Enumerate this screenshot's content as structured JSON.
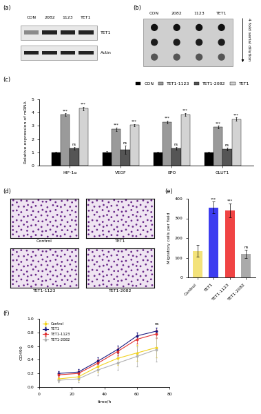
{
  "blot_a": {
    "panel": "(a)",
    "lanes": [
      "CON",
      "2082",
      "1123",
      "TET1"
    ],
    "rows": [
      "TET1",
      "Actin"
    ]
  },
  "blot_b": {
    "panel": "(b)",
    "lanes": [
      "CON",
      "2082",
      "1123",
      "TET1"
    ],
    "note": "4 fold serial dilution"
  },
  "images_d": {
    "panel": "(d)",
    "images": [
      "Control",
      "TET1",
      "TET1-1123",
      "TET1-2082"
    ]
  },
  "chart_data": [
    {
      "type": "bar",
      "panel": "(c)",
      "y_label": "Relative expression of mRNA",
      "categories": [
        "HIF-1α",
        "VEGF",
        "EPO",
        "GLUT1"
      ],
      "series": [
        {
          "name": "CON",
          "color": "#000000",
          "values": [
            1,
            1,
            1,
            1
          ],
          "errors": [
            0.05,
            0.08,
            0.05,
            0.05
          ],
          "annotations": [
            null,
            null,
            null,
            null
          ]
        },
        {
          "name": "TET1-1123",
          "color": "#9a9a9a",
          "values": [
            3.85,
            2.75,
            3.3,
            2.9
          ],
          "errors": [
            0.1,
            0.12,
            0.1,
            0.1
          ],
          "annotations": [
            "***",
            "***",
            "***",
            "***"
          ]
        },
        {
          "name": "TET1-2082",
          "color": "#555555",
          "values": [
            1.3,
            1.2,
            1.3,
            1.25
          ],
          "errors": [
            0.12,
            0.3,
            0.12,
            0.1
          ],
          "annotations": [
            "ns",
            "ns",
            "ns",
            "ns"
          ]
        },
        {
          "name": "TET1",
          "color": "#d3d3d3",
          "values": [
            4.3,
            3.05,
            3.85,
            3.5
          ],
          "errors": [
            0.15,
            0.1,
            0.12,
            0.12
          ],
          "annotations": [
            "***",
            "***",
            "***",
            "***"
          ]
        }
      ],
      "ylim": [
        0,
        5
      ],
      "yticks": [
        0,
        1,
        2,
        3,
        4,
        5
      ],
      "legend": "upper right"
    },
    {
      "type": "bar",
      "panel": "(e)",
      "y_label": "Migratory cells per field",
      "categories": [
        "Control",
        "TET1",
        "TET1-1123",
        "TET1-2082"
      ],
      "values": [
        135,
        355,
        340,
        120
      ],
      "errors": [
        30,
        30,
        35,
        20
      ],
      "annotations": [
        null,
        "***",
        "***",
        "ns"
      ],
      "colors": [
        "#f3e27a",
        "#3c3cf0",
        "#f04444",
        "#aaaaaa"
      ],
      "ylim": [
        0,
        400
      ],
      "yticks": [
        0,
        100,
        200,
        300,
        400
      ]
    },
    {
      "type": "line",
      "panel": "(f)",
      "x_label": "time/h",
      "y_label": "OD490",
      "x": [
        12,
        24,
        36,
        48,
        60,
        72
      ],
      "series": [
        {
          "name": "Control",
          "color": "#f2d21c",
          "marker": "o",
          "values": [
            0.12,
            0.15,
            0.3,
            0.42,
            0.5,
            0.58
          ],
          "errors": [
            0.03,
            0.05,
            0.08,
            0.1,
            0.12,
            0.15
          ]
        },
        {
          "name": "TET1",
          "color": "#1a1a80",
          "marker": "o",
          "values": [
            0.2,
            0.22,
            0.38,
            0.55,
            0.75,
            0.82
          ],
          "errors": [
            0.03,
            0.04,
            0.05,
            0.06,
            0.05,
            0.05
          ]
        },
        {
          "name": "TET1-1123",
          "color": "#e03030",
          "marker": "o",
          "values": [
            0.18,
            0.2,
            0.35,
            0.52,
            0.7,
            0.78
          ],
          "errors": [
            0.03,
            0.04,
            0.05,
            0.06,
            0.06,
            0.06
          ]
        },
        {
          "name": "TET1-2082",
          "color": "#b0b0b0",
          "marker": "o",
          "values": [
            0.1,
            0.12,
            0.25,
            0.35,
            0.45,
            0.55
          ],
          "errors": [
            0.03,
            0.05,
            0.08,
            0.1,
            0.15,
            0.18
          ]
        }
      ],
      "annotations": [
        {
          "text": "ns",
          "x": 72,
          "y": 0.9
        }
      ],
      "xlim": [
        0,
        80
      ],
      "xticks": [
        0,
        20,
        40,
        60,
        80
      ],
      "ylim": [
        0,
        1.0
      ],
      "yticks": [
        {
          "value": 0,
          "label": "0.0"
        },
        {
          "value": 0.2,
          "label": "0.2"
        },
        {
          "value": 0.4,
          "label": "0.4"
        },
        {
          "value": 0.6,
          "label": "0.6"
        },
        {
          "value": 0.8,
          "label": "0.8"
        },
        {
          "value": 1.0,
          "label": "1.0"
        }
      ],
      "legend": "upper left"
    }
  ]
}
